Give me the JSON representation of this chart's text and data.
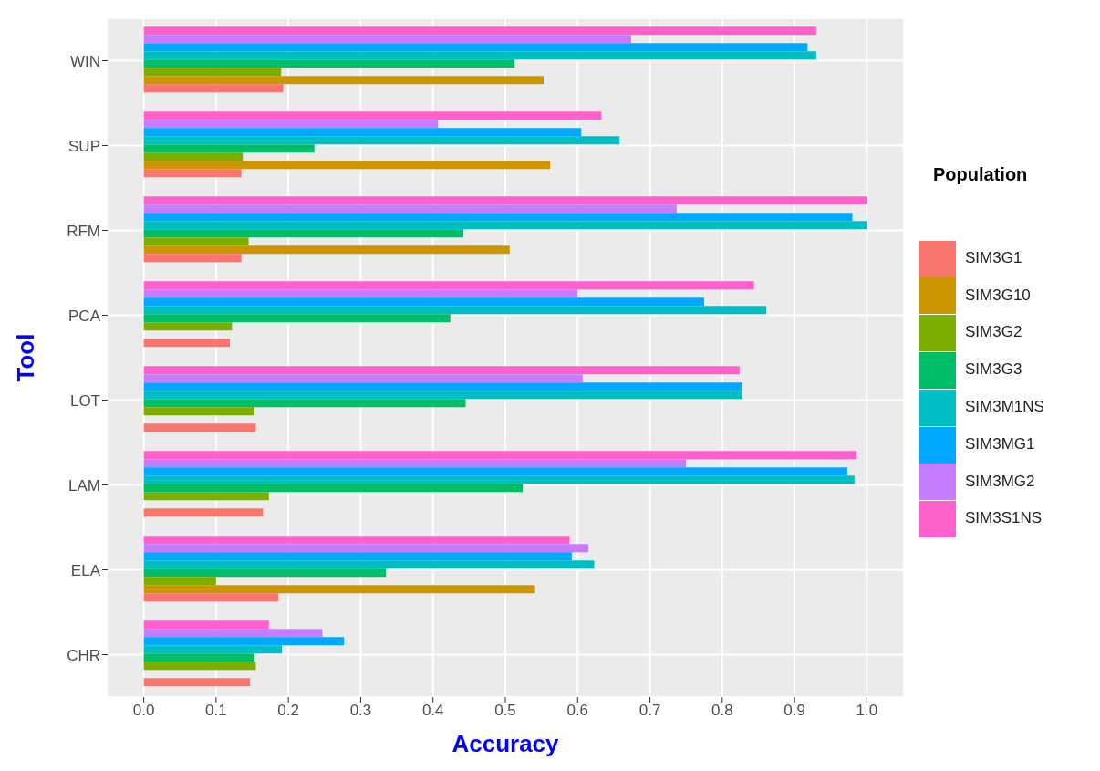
{
  "chart_data": {
    "type": "bar",
    "orientation": "horizontal",
    "xlabel": "Accuracy",
    "ylabel": "Tool",
    "legend_title": "Population",
    "legend": "right",
    "grid": true,
    "categories": [
      "WIN",
      "SUP",
      "RFM",
      "PCA",
      "LOT",
      "LAM",
      "ELA",
      "CHR"
    ],
    "xlim": [
      -0.05,
      1.05
    ],
    "xticks": [
      {
        "value": 0,
        "label": "0.0"
      },
      {
        "value": 0.1,
        "label": "0.1"
      },
      {
        "value": 0.2,
        "label": "0.2"
      },
      {
        "value": 0.3,
        "label": "0.3"
      },
      {
        "value": 0.4,
        "label": "0.4"
      },
      {
        "value": 0.5,
        "label": "0.5"
      },
      {
        "value": 0.6,
        "label": "0.6"
      },
      {
        "value": 0.7,
        "label": "0.7"
      },
      {
        "value": 0.8,
        "label": "0.8"
      },
      {
        "value": 0.9,
        "label": "0.9"
      },
      {
        "value": 1,
        "label": "1.0"
      }
    ],
    "series": [
      {
        "name": "SIM3G1",
        "color": "#f8766d",
        "values": [
          0.193,
          0.135,
          0.135,
          0.119,
          0.155,
          0.165,
          0.186,
          0.147
        ]
      },
      {
        "name": "SIM3G10",
        "color": "#cd9600",
        "values": [
          0.553,
          0.562,
          0.506,
          null,
          null,
          null,
          0.541,
          null
        ]
      },
      {
        "name": "SIM3G2",
        "color": "#7cae00",
        "values": [
          0.19,
          0.137,
          0.145,
          0.122,
          0.153,
          0.173,
          0.1,
          0.155
        ]
      },
      {
        "name": "SIM3G3",
        "color": "#00be67",
        "values": [
          0.513,
          0.236,
          0.442,
          0.424,
          0.445,
          0.524,
          0.335,
          0.153
        ]
      },
      {
        "name": "SIM3M1NS",
        "color": "#00bfc4",
        "values": [
          0.93,
          0.658,
          1.0,
          0.861,
          0.828,
          0.983,
          0.623,
          0.191
        ]
      },
      {
        "name": "SIM3MG1",
        "color": "#00a9ff",
        "values": [
          0.918,
          0.605,
          0.98,
          0.775,
          0.828,
          0.973,
          0.592,
          0.277
        ]
      },
      {
        "name": "SIM3MG2",
        "color": "#c77cff",
        "values": [
          0.674,
          0.407,
          0.737,
          0.6,
          0.607,
          0.75,
          0.615,
          0.247
        ]
      },
      {
        "name": "SIM3S1NS",
        "color": "#ff61cc",
        "values": [
          0.93,
          0.633,
          1.0,
          0.844,
          0.824,
          0.986,
          0.589,
          0.173
        ]
      }
    ]
  }
}
